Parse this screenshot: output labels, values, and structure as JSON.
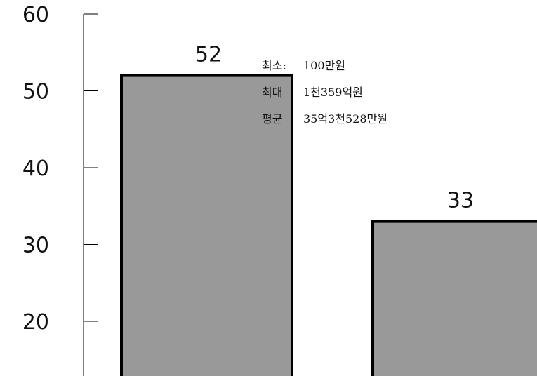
{
  "chart_data": {
    "type": "bar",
    "title": "",
    "xlabel": "",
    "ylabel": "",
    "ylim": [
      10,
      60
    ],
    "yticks": [
      60,
      50,
      40,
      30,
      20
    ],
    "ytick_labels": [
      "60",
      "50",
      "40",
      "30",
      "20"
    ],
    "values": [
      52,
      33
    ],
    "data_labels": [
      "52",
      "33"
    ],
    "bar_color": "#999999",
    "bar_edge_color": "#000000",
    "grid": false
  },
  "annotation": {
    "rows": [
      {
        "label": "최소:",
        "value": "100만원"
      },
      {
        "label": "최대",
        "value": "1천359억원"
      },
      {
        "label": "평균",
        "value": "35억3천528만원"
      }
    ]
  }
}
